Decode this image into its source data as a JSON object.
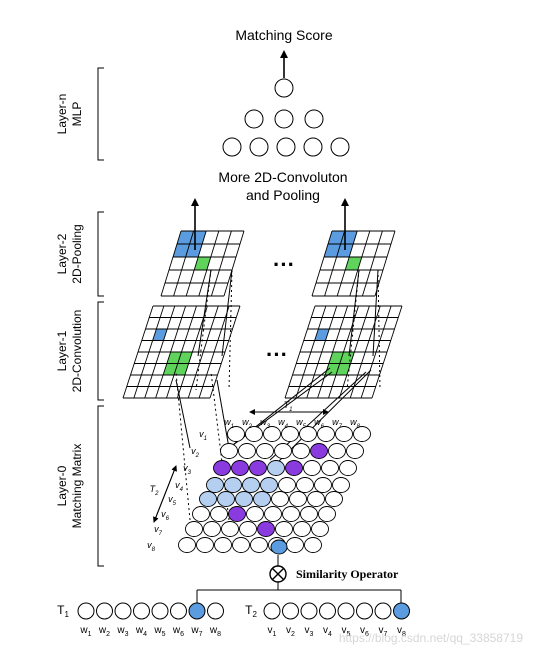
{
  "title": "Matching Score",
  "mid_label": {
    "line1": "More 2D-Convoluton",
    "line2": "and Pooling"
  },
  "layers": [
    {
      "id": "layer-n",
      "line1": "Layer-n",
      "line2": "MLP"
    },
    {
      "id": "layer-2",
      "line1": "Layer-2",
      "line2": "2D-Pooling"
    },
    {
      "id": "layer-1",
      "line1": "Layer-1",
      "line2": "2D-Convolution"
    },
    {
      "id": "layer-0",
      "line1": "Layer-0",
      "line2": "Matching Matrix"
    }
  ],
  "ellipsis": "···",
  "operator_label": "Similarity Operator",
  "t1_axis_label": "T1",
  "t2_axis_label": "T2",
  "matrix_col_labels": [
    "w1",
    "w2",
    "w3",
    "w4",
    "w5",
    "w6",
    "w7",
    "w8"
  ],
  "matrix_row_labels": [
    "v1",
    "v2",
    "v3",
    "v4",
    "v5",
    "v6",
    "v7",
    "v8"
  ],
  "t1": {
    "label": "T1",
    "words": [
      "w1",
      "w2",
      "w3",
      "w4",
      "w5",
      "w6",
      "w7",
      "w8"
    ]
  },
  "t2": {
    "label": "T2",
    "words": [
      "v1",
      "v2",
      "v3",
      "v4",
      "v5",
      "v6",
      "v7",
      "v8"
    ]
  },
  "watermark": "https://blog.csdn.net/qq_33858719",
  "colors": {
    "blue": "#5b9bdf",
    "light_blue": "#b5cff0",
    "green": "#5fd35c",
    "purple": "#8a3be0",
    "line": "#000000"
  }
}
